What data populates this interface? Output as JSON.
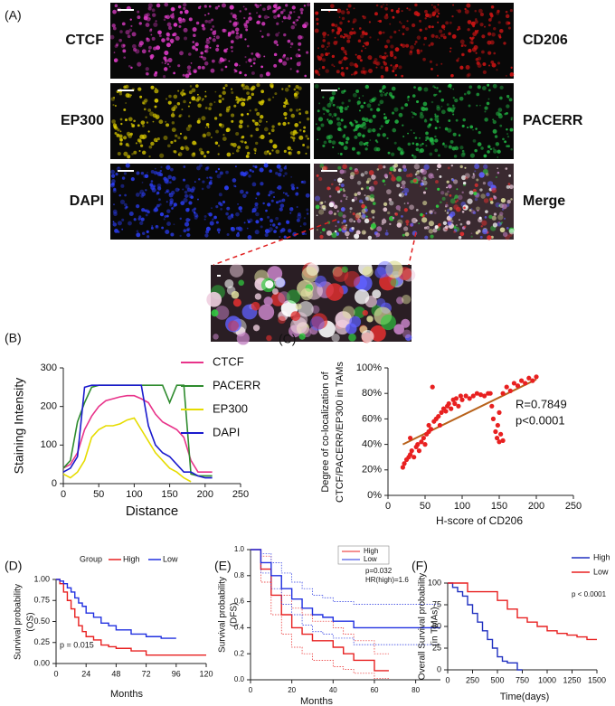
{
  "panel_a": {
    "label": "(A)",
    "images": [
      {
        "label": "CTCF",
        "color": "#e03cc8"
      },
      {
        "label": "CD206",
        "color": "#cc1414"
      },
      {
        "label": "EP300",
        "color": "#d8c800"
      },
      {
        "label": "PACERR",
        "color": "#22b844"
      },
      {
        "label": "DAPI",
        "color": "#2a3cf0"
      },
      {
        "label": "Merge",
        "color": "#111111"
      }
    ],
    "merge_colors": [
      "#f0d0e0",
      "#e03030",
      "#30d040",
      "#6060ff",
      "#e0e0a0",
      "#c080c0",
      "#ffffff"
    ]
  },
  "chart_data": [
    {
      "type": "line",
      "panel_label": "(B)",
      "xlabel": "Distance",
      "ylabel": [
        "Staining Intensity"
      ],
      "x": [
        0,
        10,
        20,
        30,
        40,
        50,
        60,
        70,
        80,
        90,
        100,
        110,
        120,
        130,
        140,
        150,
        160,
        170,
        180,
        190,
        200,
        210
      ],
      "xlim": [
        0,
        250
      ],
      "xticks": [
        0,
        50,
        100,
        150,
        200,
        250
      ],
      "ylim": [
        0,
        300
      ],
      "yticks": [
        0,
        100,
        200,
        300
      ],
      "series": [
        {
          "name": "CTCF",
          "color": "#e8338a",
          "values": [
            40,
            50,
            80,
            140,
            175,
            200,
            215,
            220,
            225,
            228,
            228,
            220,
            210,
            180,
            160,
            150,
            140,
            120,
            60,
            30,
            30,
            30
          ]
        },
        {
          "name": "PACERR",
          "color": "#2e8b2e",
          "values": [
            40,
            60,
            160,
            210,
            250,
            255,
            255,
            255,
            255,
            255,
            255,
            255,
            255,
            255,
            255,
            210,
            255,
            255,
            25,
            20,
            20,
            20
          ]
        },
        {
          "name": "EP300",
          "color": "#e6dc00",
          "values": [
            25,
            15,
            30,
            60,
            120,
            140,
            150,
            150,
            155,
            165,
            170,
            140,
            110,
            80,
            60,
            40,
            30,
            15,
            5,
            null,
            null,
            null
          ]
        },
        {
          "name": "DAPI",
          "color": "#1a1acd",
          "values": [
            30,
            40,
            70,
            250,
            255,
            255,
            255,
            255,
            255,
            255,
            255,
            255,
            150,
            100,
            80,
            70,
            50,
            30,
            30,
            20,
            15,
            15
          ]
        }
      ]
    },
    {
      "type": "scatter",
      "panel_label": "(C)",
      "xlabel": "H-score of CD206",
      "ylabel": [
        "Degree of co-localization of",
        "CTCF/PACERR/EP300 in TAMs"
      ],
      "color": "#e82020",
      "x": [
        20,
        22,
        25,
        28,
        30,
        32,
        35,
        38,
        40,
        42,
        45,
        48,
        50,
        52,
        55,
        55,
        58,
        60,
        62,
        65,
        68,
        70,
        72,
        75,
        78,
        80,
        82,
        85,
        88,
        90,
        92,
        95,
        98,
        100,
        105,
        110,
        115,
        120,
        125,
        130,
        135,
        138,
        140,
        142,
        145,
        147,
        150,
        152,
        155,
        148,
        150,
        155,
        160,
        165,
        170,
        175,
        180,
        185,
        190,
        195,
        200,
        30
      ],
      "y": [
        22,
        25,
        28,
        30,
        32,
        35,
        30,
        38,
        40,
        35,
        42,
        45,
        40,
        48,
        50,
        55,
        52,
        85,
        58,
        60,
        62,
        55,
        65,
        68,
        66,
        70,
        72,
        68,
        75,
        72,
        76,
        70,
        78,
        75,
        78,
        76,
        78,
        80,
        79,
        78,
        80,
        80,
        70,
        60,
        50,
        45,
        42,
        48,
        43,
        55,
        65,
        80,
        85,
        82,
        88,
        86,
        90,
        88,
        92,
        90,
        93,
        45
      ],
      "trendline": {
        "color": "#b8621b",
        "x": [
          20,
          200
        ],
        "y": [
          40,
          91
        ]
      },
      "xlim": [
        0,
        250
      ],
      "xticks": [
        0,
        50,
        100,
        150,
        200,
        250
      ],
      "ylim": [
        0,
        100
      ],
      "yticks": [
        {
          "value": 0,
          "label": "0%"
        },
        {
          "value": 20,
          "label": "20%"
        },
        {
          "value": 40,
          "label": "40%"
        },
        {
          "value": 60,
          "label": "60%"
        },
        {
          "value": 80,
          "label": "80%"
        },
        {
          "value": 100,
          "label": "100%"
        }
      ],
      "annotations": [
        "R=0.7849",
        "p<0.0001"
      ]
    },
    {
      "type": "step",
      "panel_label": "(D)",
      "xlabel": "Months",
      "ylabel": [
        "Survival probability",
        "(OS)"
      ],
      "legend_title": "Group",
      "xlim": [
        0,
        120
      ],
      "xticks": [
        0,
        24,
        48,
        72,
        96,
        120
      ],
      "ylim": [
        0,
        1
      ],
      "yticks": [
        {
          "value": 0,
          "label": "0.00"
        },
        0.25,
        {
          "value": 0.5,
          "label": "0.50"
        },
        0.75,
        {
          "value": 1,
          "label": "1.00"
        }
      ],
      "series": [
        {
          "name": "High",
          "color": "#e82020",
          "x": [
            0,
            3,
            6,
            9,
            12,
            15,
            18,
            21,
            24,
            30,
            36,
            42,
            48,
            60,
            72,
            84,
            96,
            108,
            120
          ],
          "values": [
            1,
            0.95,
            0.85,
            0.75,
            0.65,
            0.55,
            0.45,
            0.38,
            0.32,
            0.28,
            0.22,
            0.2,
            0.18,
            0.15,
            0.1,
            0.1,
            0.1,
            0.1,
            0.1
          ]
        },
        {
          "name": "Low",
          "color": "#2030e0",
          "x": [
            0,
            3,
            6,
            9,
            12,
            15,
            18,
            21,
            24,
            30,
            36,
            42,
            48,
            60,
            72,
            84,
            96
          ],
          "values": [
            1,
            0.98,
            0.95,
            0.9,
            0.85,
            0.78,
            0.72,
            0.68,
            0.6,
            0.55,
            0.48,
            0.45,
            0.4,
            0.35,
            0.32,
            0.3,
            0.3
          ]
        }
      ],
      "annotations": [
        "p = 0.015"
      ]
    },
    {
      "type": "step",
      "panel_label": "(E)",
      "xlabel": "Months",
      "ylabel": [
        "Survival probability",
        "(DFS)"
      ],
      "xlim": [
        0,
        92
      ],
      "xticks": [
        0,
        20,
        40,
        60,
        80
      ],
      "ylim": [
        0,
        1
      ],
      "yticks": [
        {
          "value": 0,
          "label": "0.0"
        },
        0.2,
        0.4,
        0.6,
        0.8,
        {
          "value": 1,
          "label": "1.0"
        }
      ],
      "series": [
        {
          "name": "High",
          "color": "#e82020",
          "x": [
            0,
            5,
            10,
            15,
            20,
            25,
            30,
            35,
            40,
            45,
            50,
            55,
            60,
            65,
            67
          ],
          "values": [
            1,
            0.85,
            0.65,
            0.5,
            0.4,
            0.35,
            0.3,
            0.3,
            0.25,
            0.2,
            0.15,
            0.15,
            0.07,
            0.07,
            0.07
          ],
          "ci_upper": [
            1,
            0.95,
            0.8,
            0.65,
            0.55,
            0.5,
            0.45,
            0.45,
            0.4,
            0.35,
            0.3,
            0.3,
            0.2,
            0.2,
            0.2
          ],
          "ci_lower": [
            1,
            0.75,
            0.5,
            0.35,
            0.25,
            0.2,
            0.15,
            0.15,
            0.1,
            0.08,
            0.05,
            0.05,
            0.01,
            0.01,
            0.01
          ]
        },
        {
          "name": "Low",
          "color": "#2030e0",
          "x": [
            0,
            5,
            10,
            15,
            20,
            25,
            30,
            35,
            40,
            45,
            50,
            55,
            60,
            70,
            80,
            92
          ],
          "values": [
            1,
            0.9,
            0.8,
            0.7,
            0.62,
            0.55,
            0.5,
            0.48,
            0.45,
            0.45,
            0.4,
            0.4,
            0.4,
            0.4,
            0.4,
            0.4
          ],
          "ci_upper": [
            1,
            0.97,
            0.9,
            0.82,
            0.75,
            0.7,
            0.65,
            0.63,
            0.6,
            0.6,
            0.58,
            0.58,
            0.58,
            0.58,
            0.58,
            0.58
          ],
          "ci_lower": [
            1,
            0.82,
            0.7,
            0.58,
            0.5,
            0.42,
            0.37,
            0.35,
            0.32,
            0.32,
            0.27,
            0.27,
            0.27,
            0.27,
            0.27,
            0.27
          ]
        }
      ],
      "annotations": [
        "p=0.032",
        "HR(high)=1.6"
      ]
    },
    {
      "type": "step",
      "panel_label": "(F)",
      "xlabel": "Time(days)",
      "ylabel": [
        "Overall Survival probability",
        "(in TMAs)"
      ],
      "xlim": [
        0,
        1500
      ],
      "xticks": [
        0,
        250,
        500,
        750,
        1000,
        1250,
        1500
      ],
      "ylim": [
        0,
        100
      ],
      "yticks": [
        0,
        25,
        50,
        75,
        100
      ],
      "series": [
        {
          "name": "High",
          "color": "#2030c0",
          "x": [
            0,
            50,
            100,
            150,
            200,
            250,
            300,
            350,
            400,
            450,
            500,
            550,
            600,
            650,
            700,
            750
          ],
          "values": [
            100,
            95,
            90,
            85,
            75,
            65,
            55,
            45,
            35,
            25,
            15,
            10,
            8,
            8,
            0,
            0
          ]
        },
        {
          "name": "Low",
          "color": "#e82020",
          "x": [
            0,
            100,
            200,
            300,
            400,
            500,
            600,
            700,
            800,
            900,
            1000,
            1100,
            1200,
            1300,
            1400,
            1500
          ],
          "values": [
            100,
            100,
            90,
            90,
            90,
            80,
            70,
            60,
            55,
            50,
            45,
            42,
            40,
            38,
            35,
            35
          ]
        }
      ],
      "annotations": [
        "p < 0.0001"
      ]
    }
  ]
}
